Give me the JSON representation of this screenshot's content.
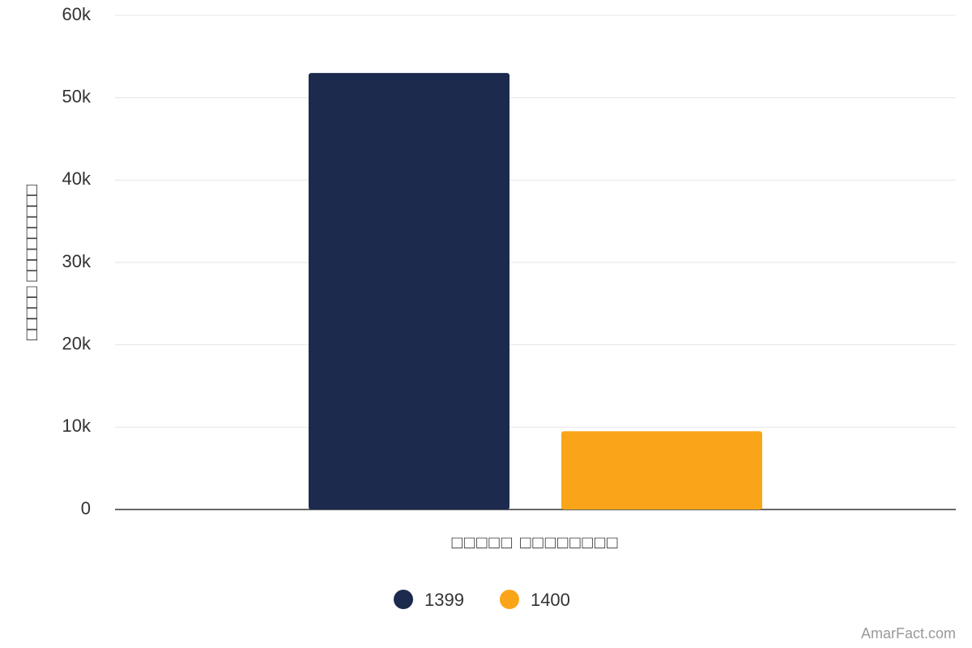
{
  "chart_data": {
    "type": "bar",
    "x_label": "□□□□□ □□□□□□□□",
    "y_label": "□□□□□ □□□□□□□□□",
    "categories": [
      "□□□□□ □□□□□□□□"
    ],
    "series": [
      {
        "name": "1399",
        "color": "#1b2a4d",
        "values": [
          53000
        ]
      },
      {
        "name": "1400",
        "color": "#faa519",
        "values": [
          9500
        ]
      }
    ],
    "ylim": [
      0,
      60000
    ],
    "yticks": [
      0,
      {
        "value": 10000,
        "label": "10k"
      },
      {
        "value": 20000,
        "label": "20k"
      },
      {
        "value": 30000,
        "label": "30k"
      },
      {
        "value": 40000,
        "label": "40k"
      },
      {
        "value": 50000,
        "label": "50k"
      },
      {
        "value": 60000,
        "label": "60k"
      }
    ],
    "grid": true,
    "legend": "bottom",
    "source": "AmarFact.com"
  }
}
